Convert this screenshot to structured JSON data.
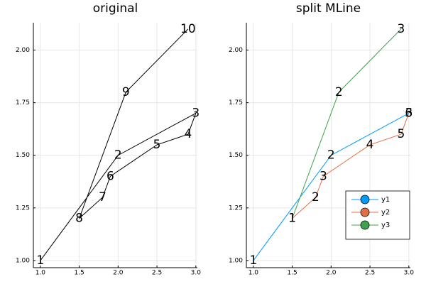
{
  "chart_data": [
    {
      "type": "line",
      "title": "original",
      "xlim": [
        0.91,
        3.02
      ],
      "ylim": [
        0.966,
        2.13
      ],
      "xticks": [
        {
          "value": 1,
          "label": "1.0"
        },
        {
          "value": 1.5,
          "label": "1.5"
        },
        {
          "value": 2,
          "label": "2.0"
        },
        {
          "value": 2.5,
          "label": "2.5"
        },
        {
          "value": 3,
          "label": "3.0"
        }
      ],
      "yticks": [
        {
          "value": 1,
          "label": "1.00"
        },
        {
          "value": 1.25,
          "label": "1.25"
        },
        {
          "value": 1.5,
          "label": "1.50"
        },
        {
          "value": 1.75,
          "label": "1.75"
        },
        {
          "value": 2,
          "label": "2.00"
        }
      ],
      "grid": true,
      "series": [
        {
          "color": "#000000",
          "x": [
            1.0,
            2.0,
            3.0,
            2.9,
            2.5,
            1.9,
            1.8,
            1.5,
            2.1,
            2.9
          ],
          "values": [
            1.0,
            1.5,
            1.7,
            1.6,
            1.55,
            1.4,
            1.3,
            1.2,
            1.8,
            2.1
          ],
          "labels": [
            "1",
            "2",
            "3",
            "4",
            "5",
            "6",
            "7",
            "8",
            "9",
            "10"
          ]
        }
      ]
    },
    {
      "type": "line",
      "title": "split MLine",
      "xlim": [
        0.91,
        3.02
      ],
      "ylim": [
        0.966,
        2.13
      ],
      "xticks": [
        {
          "value": 1,
          "label": "1.0"
        },
        {
          "value": 1.5,
          "label": "1.5"
        },
        {
          "value": 2,
          "label": "2.0"
        },
        {
          "value": 2.5,
          "label": "2.5"
        },
        {
          "value": 3,
          "label": "3.0"
        }
      ],
      "yticks": [
        {
          "value": 1,
          "label": "1.00"
        },
        {
          "value": 1.25,
          "label": "1.25"
        },
        {
          "value": 1.5,
          "label": "1.50"
        },
        {
          "value": 1.75,
          "label": "1.75"
        },
        {
          "value": 2,
          "label": "2.00"
        }
      ],
      "grid": true,
      "legend": "bottom right",
      "series": [
        {
          "name": "y1",
          "color": "#009af9",
          "x": [
            1.0,
            2.0,
            3.0
          ],
          "values": [
            1.0,
            1.5,
            1.7
          ],
          "labels": [
            "1",
            "2",
            "3"
          ]
        },
        {
          "name": "y2",
          "color": "#e26f46",
          "x": [
            1.5,
            1.8,
            1.9,
            2.5,
            2.9,
            3.0
          ],
          "values": [
            1.2,
            1.3,
            1.4,
            1.55,
            1.6,
            1.7
          ],
          "labels": [
            "1",
            "2",
            "3",
            "4",
            "5",
            "6"
          ]
        },
        {
          "name": "y3",
          "color": "#3da44d",
          "x": [
            1.5,
            2.1,
            2.9
          ],
          "values": [
            1.2,
            1.8,
            2.1
          ],
          "labels": [
            "1",
            "2",
            "3"
          ]
        }
      ]
    }
  ]
}
